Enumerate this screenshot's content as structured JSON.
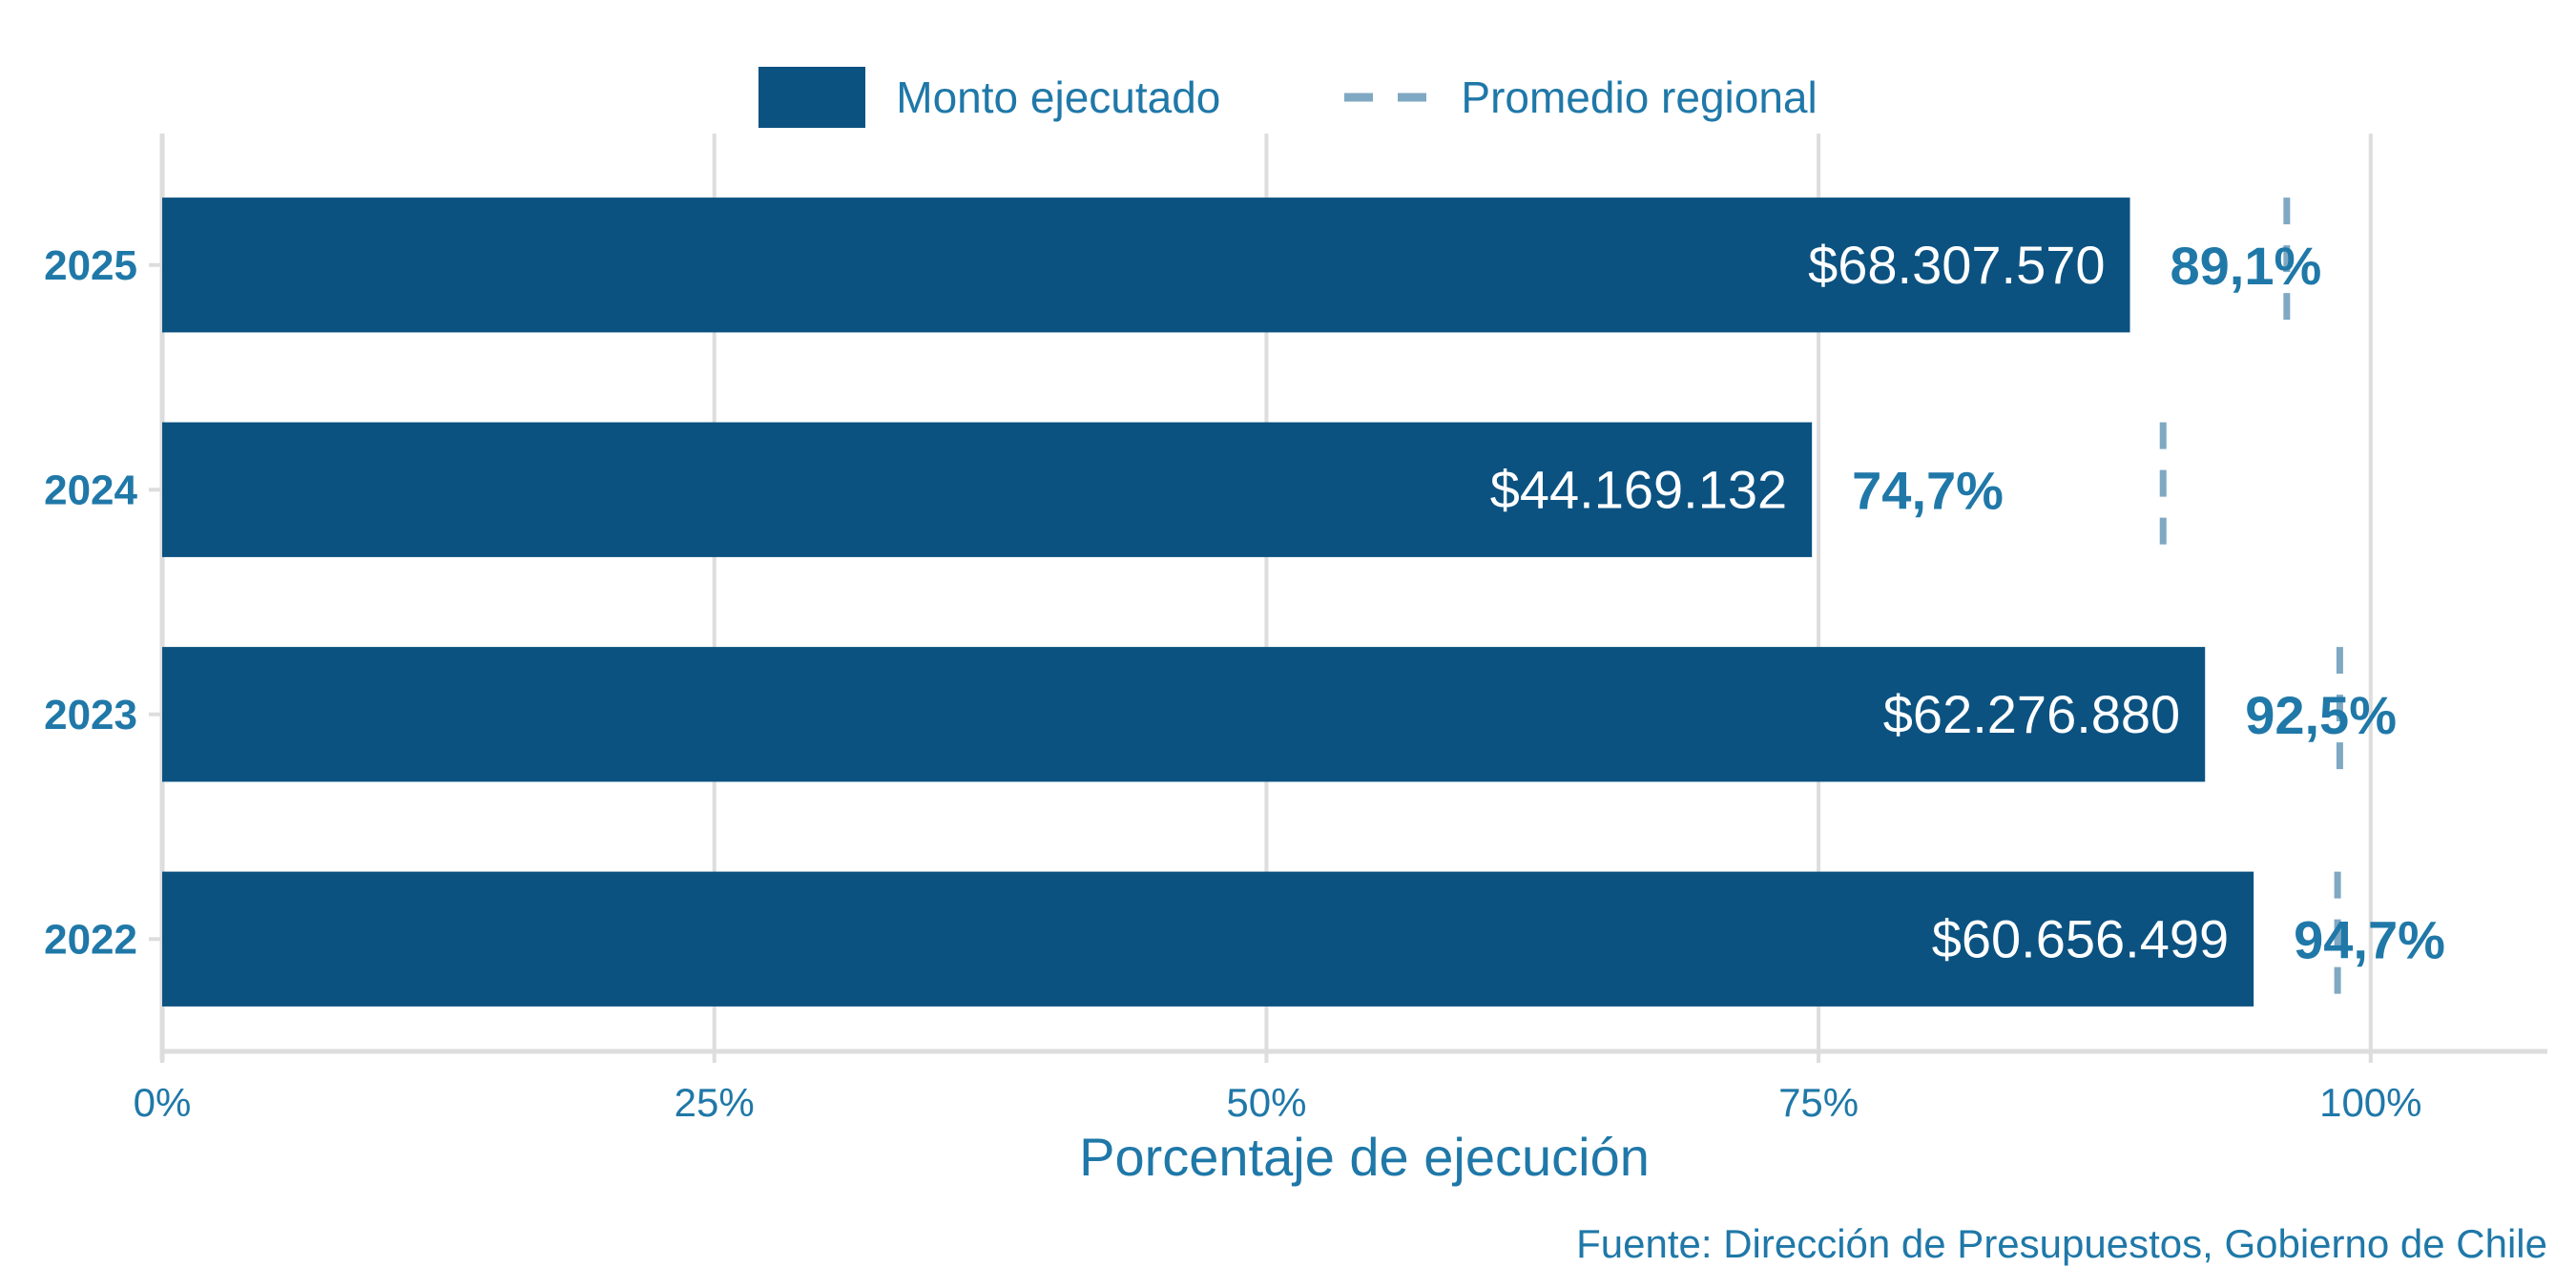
{
  "colors": {
    "bar": "#0b5281",
    "text": "#1f78a8",
    "dash": "#7fa8c3",
    "grid": "#dddddd",
    "bar_label": "#ffffff"
  },
  "legend": {
    "bar_label": "Monto ejecutado",
    "dash_label": "Promedio regional"
  },
  "xlabel": "Porcentaje de ejecución",
  "source": "Fuente: Dirección de Presupuestos, Gobierno de Chile",
  "chart_data": {
    "type": "bar",
    "orientation": "horizontal",
    "categories": [
      "2025",
      "2024",
      "2023",
      "2022"
    ],
    "series": [
      {
        "name": "Monto ejecutado",
        "values": [
          89.1,
          74.7,
          92.5,
          94.7
        ]
      }
    ],
    "amount_labels": [
      "$68.307.570",
      "$44.169.132",
      "$62.276.880",
      "$60.656.499"
    ],
    "percent_labels": [
      "89,1%",
      "74,7%",
      "92,5%",
      "94,7%"
    ],
    "regional_average": {
      "name": "Promedio regional",
      "values": [
        96.2,
        90.6,
        98.6,
        98.5
      ]
    },
    "xlabel": "Porcentaje de ejecución",
    "xlim": [
      0,
      108
    ],
    "xticks": [
      0,
      25,
      50,
      75,
      100
    ],
    "xtick_labels": [
      "0%",
      "25%",
      "50%",
      "75%",
      "100%"
    ],
    "grid": true,
    "legend_position": "top"
  }
}
